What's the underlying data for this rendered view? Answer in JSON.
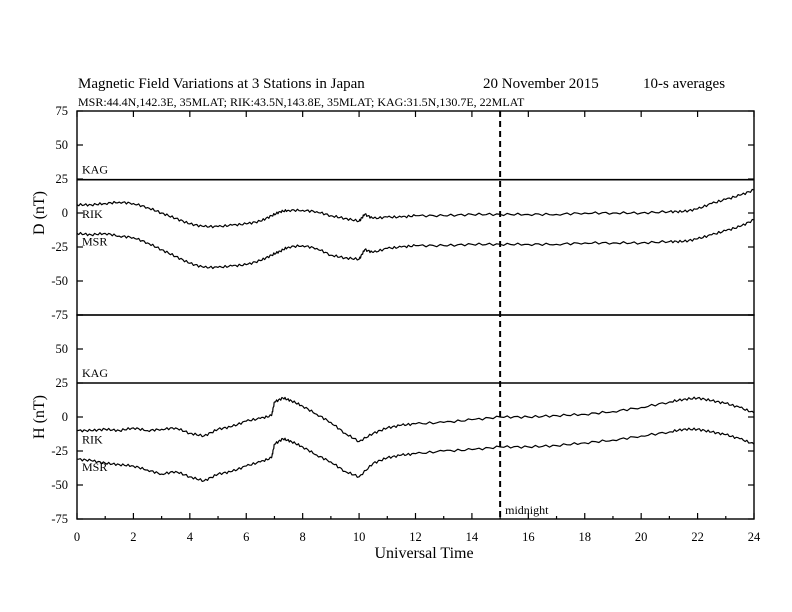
{
  "chart_data": {
    "type": "line",
    "title": "Magnetic Field Variations at 3 Stations in Japan",
    "date": "20 November 2015",
    "averaging": "10-s averages",
    "subtitle": "MSR:44.4N,142.3E, 35MLAT;  RIK:43.5N,143.8E, 35MLAT;  KAG:31.5N,130.7E, 22MLAT",
    "xlabel": "Universal Time",
    "xlim": [
      0,
      24
    ],
    "xticks": [
      0,
      2,
      4,
      6,
      8,
      10,
      12,
      14,
      16,
      18,
      20,
      22,
      24
    ],
    "midnight": {
      "x": 15,
      "label": "midnight"
    },
    "panels": [
      {
        "ylabel": "D (nT)",
        "ylim": [
          -75,
          75
        ],
        "yticks": [
          75,
          50,
          25,
          0,
          -25,
          -50,
          -75
        ],
        "series": [
          {
            "name": "KAG",
            "x": [
              0,
              24
            ],
            "y": [
              24.5,
              24.5
            ]
          },
          {
            "name": "RIK",
            "x": [
              0,
              0.5,
              1,
              1.5,
              2,
              2.5,
              3,
              3.5,
              4,
              4.5,
              5,
              5.5,
              6,
              6.5,
              6.9,
              7.2,
              7.5,
              8,
              8.5,
              9,
              9.5,
              10,
              10.2,
              10.5,
              11,
              11.5,
              12,
              13,
              14,
              15,
              16,
              17,
              18,
              19,
              20,
              21,
              21.5,
              22,
              22.5,
              23,
              23.5,
              24
            ],
            "y": [
              6,
              6,
              7,
              8,
              7,
              4,
              0,
              -4,
              -8,
              -10,
              -10,
              -9,
              -8,
              -6,
              -2,
              1,
              2,
              2,
              1,
              -2,
              -4,
              -6,
              -1,
              -4,
              -3,
              -3,
              -2,
              -2,
              -1,
              -1,
              -1,
              -1,
              0,
              0,
              0,
              1,
              1,
              3,
              7,
              10,
              13,
              17
            ]
          },
          {
            "name": "MSR",
            "x": [
              0,
              0.5,
              1,
              1.5,
              2,
              2.5,
              3,
              3.5,
              4,
              4.5,
              5,
              5.5,
              6,
              6.5,
              6.9,
              7.2,
              7.5,
              8,
              8.5,
              9,
              9.5,
              10,
              10.2,
              10.5,
              11,
              11.5,
              12,
              13,
              14,
              15,
              16,
              17,
              18,
              19,
              20,
              21,
              21.5,
              22,
              22.5,
              23,
              23.5,
              24
            ],
            "y": [
              -15,
              -16,
              -15,
              -17,
              -18,
              -22,
              -27,
              -32,
              -37,
              -40,
              -40,
              -39,
              -38,
              -35,
              -31,
              -28,
              -25,
              -24,
              -26,
              -31,
              -33,
              -34,
              -27,
              -29,
              -26,
              -25,
              -24,
              -24,
              -23,
              -23,
              -23,
              -23,
              -22,
              -22,
              -22,
              -21,
              -21,
              -19,
              -16,
              -13,
              -10,
              -5
            ]
          }
        ]
      },
      {
        "ylabel": "H (nT)",
        "ylim": [
          -75,
          75
        ],
        "yticks": [
          75,
          50,
          25,
          0,
          -25,
          -50,
          -75
        ],
        "series": [
          {
            "name": "KAG",
            "x": [
              0,
              24
            ],
            "y": [
              25,
              25
            ]
          },
          {
            "name": "RIK",
            "x": [
              0,
              0.5,
              1,
              1.5,
              2,
              2.5,
              3,
              3.5,
              4,
              4.5,
              5,
              5.5,
              6,
              6.5,
              6.9,
              7,
              7.3,
              7.6,
              8,
              8.5,
              9,
              9.5,
              10,
              10.5,
              11,
              11.5,
              12,
              13,
              14,
              15,
              16,
              17,
              18,
              19,
              20,
              21,
              21.5,
              22,
              22.5,
              23,
              23.5,
              24
            ],
            "y": [
              -10,
              -10,
              -9,
              -10,
              -8,
              -10,
              -9,
              -8,
              -12,
              -14,
              -9,
              -7,
              -3,
              -1,
              1,
              11,
              14,
              12,
              8,
              2,
              -4,
              -12,
              -18,
              -12,
              -8,
              -6,
              -5,
              -4,
              -2,
              0,
              0,
              1,
              2,
              4,
              7,
              11,
              13,
              14,
              12,
              10,
              7,
              3
            ]
          },
          {
            "name": "MSR",
            "x": [
              0,
              0.5,
              1,
              1.5,
              2,
              2.5,
              3,
              3.5,
              4,
              4.5,
              5,
              5.5,
              6,
              6.5,
              6.9,
              7,
              7.3,
              7.6,
              8,
              8.5,
              9,
              9.5,
              10,
              10.5,
              11,
              11.5,
              12,
              13,
              14,
              15,
              16,
              17,
              18,
              19,
              20,
              21,
              21.5,
              22,
              22.5,
              23,
              23.5,
              24
            ],
            "y": [
              -31,
              -32,
              -34,
              -35,
              -36,
              -39,
              -42,
              -40,
              -44,
              -47,
              -42,
              -40,
              -36,
              -33,
              -30,
              -20,
              -16,
              -18,
              -22,
              -28,
              -33,
              -40,
              -44,
              -34,
              -30,
              -28,
              -27,
              -25,
              -24,
              -22,
              -22,
              -21,
              -19,
              -17,
              -14,
              -11,
              -9,
              -9,
              -11,
              -13,
              -16,
              -20
            ]
          }
        ]
      }
    ]
  }
}
